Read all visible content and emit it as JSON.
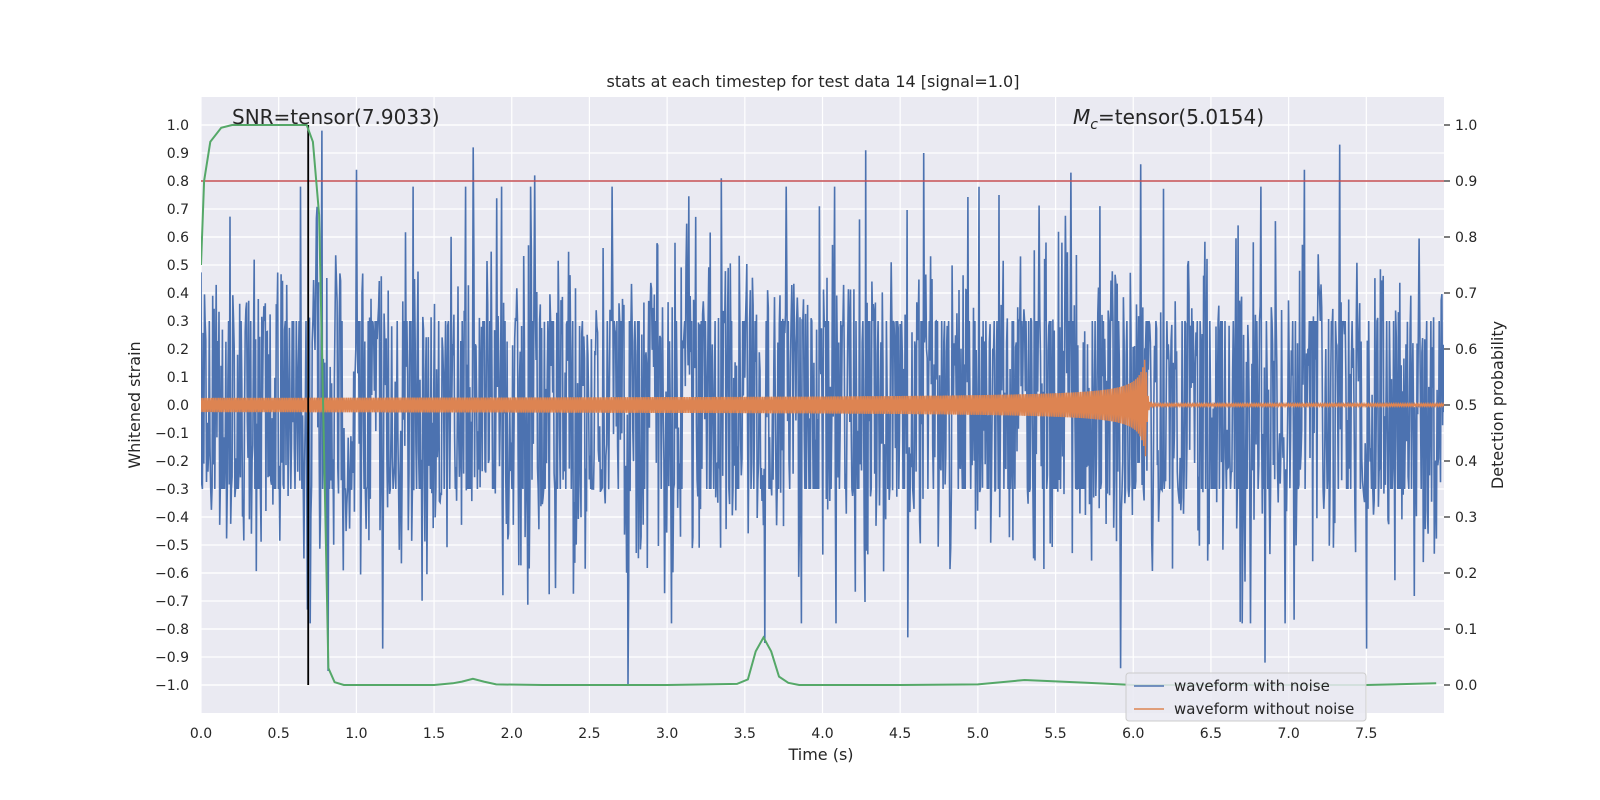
{
  "chart_data": {
    "type": "line",
    "title": "stats at each timestep for test data 14 [signal=1.0]",
    "xlabel": "Time (s)",
    "ylabel": "Whitened strain",
    "y2label": "Detection probability",
    "xlim": [
      0.0,
      8.0
    ],
    "ylim": [
      -1.1,
      1.1
    ],
    "y2lim": [
      -0.05,
      1.05
    ],
    "xticks": [
      0.0,
      0.5,
      1.0,
      1.5,
      2.0,
      2.5,
      3.0,
      3.5,
      4.0,
      4.5,
      5.0,
      5.5,
      6.0,
      6.5,
      7.0,
      7.5
    ],
    "xtick_labels": [
      "0.0",
      "0.5",
      "1.0",
      "1.5",
      "2.0",
      "2.5",
      "3.0",
      "3.5",
      "4.0",
      "4.5",
      "5.0",
      "5.5",
      "6.0",
      "6.5",
      "7.0",
      "7.5"
    ],
    "yticks": [
      -1.0,
      -0.9,
      -0.8,
      -0.7,
      -0.6,
      -0.5,
      -0.4,
      -0.3,
      -0.2,
      -0.1,
      0.0,
      0.1,
      0.2,
      0.3,
      0.4,
      0.5,
      0.6,
      0.7,
      0.8,
      0.9,
      1.0
    ],
    "ytick_labels": [
      "−1.0",
      "−0.9",
      "−0.8",
      "−0.7",
      "−0.6",
      "−0.5",
      "−0.4",
      "−0.3",
      "−0.2",
      "−0.1",
      "0.0",
      "0.1",
      "0.2",
      "0.3",
      "0.4",
      "0.5",
      "0.6",
      "0.7",
      "0.8",
      "0.9",
      "1.0"
    ],
    "y2ticks": [
      0.0,
      0.1,
      0.2,
      0.3,
      0.4,
      0.5,
      0.6,
      0.7,
      0.8,
      0.9,
      1.0
    ],
    "y2tick_labels": [
      "0.0",
      "0.1",
      "0.2",
      "0.3",
      "0.4",
      "0.5",
      "0.6",
      "0.7",
      "0.8",
      "0.9",
      "1.0"
    ],
    "grid": true,
    "legend_position": "bottom-right",
    "annotations": {
      "snr_text": "SNR=tensor(7.9033)",
      "mc_symbol": "M",
      "mc_subscript": "c",
      "mc_value": "=tensor(5.0154)"
    },
    "series": [
      {
        "name": "waveform with noise",
        "color": "#4c72b0",
        "axis": "left",
        "description_values": {
          "typical_envelope": 0.45,
          "peak_max": 0.98,
          "peak_min": -1.0
        },
        "spikes": [
          {
            "x": 0.78,
            "y": 0.98
          },
          {
            "x": 1.0,
            "y": 0.84
          },
          {
            "x": 1.75,
            "y": 0.92
          },
          {
            "x": 2.15,
            "y": 0.82
          },
          {
            "x": 3.35,
            "y": 0.81
          },
          {
            "x": 4.28,
            "y": 0.91
          },
          {
            "x": 4.65,
            "y": 0.9
          },
          {
            "x": 5.6,
            "y": 0.83
          },
          {
            "x": 6.05,
            "y": 0.86
          },
          {
            "x": 6.82,
            "y": 0.78
          },
          {
            "x": 7.33,
            "y": 0.93
          },
          {
            "x": 7.1,
            "y": 0.84
          },
          {
            "x": 2.75,
            "y": -1.0
          },
          {
            "x": 3.63,
            "y": -0.85
          },
          {
            "x": 5.92,
            "y": -0.94
          },
          {
            "x": 6.85,
            "y": -0.92
          },
          {
            "x": 7.5,
            "y": -0.87
          },
          {
            "x": 0.82,
            "y": -0.95
          },
          {
            "x": 1.17,
            "y": -0.87
          },
          {
            "x": 4.55,
            "y": -0.83
          }
        ]
      },
      {
        "name": "waveform without noise",
        "color": "#dd8452",
        "axis": "left",
        "description_values": {
          "start_amplitude": 0.02,
          "merger_time": 6.08,
          "merger_amplitude": 0.19,
          "ringdown_end": 6.12
        }
      },
      {
        "name": "detection probability",
        "color": "#55a868",
        "axis": "right",
        "x": [
          0.0,
          0.02,
          0.06,
          0.13,
          0.2,
          0.3,
          0.5,
          0.68,
          0.72,
          0.76,
          0.79,
          0.82,
          0.86,
          0.92,
          1.2,
          1.5,
          1.62,
          1.68,
          1.75,
          1.82,
          1.9,
          2.2,
          3.0,
          3.45,
          3.52,
          3.57,
          3.62,
          3.67,
          3.72,
          3.78,
          3.85,
          4.5,
          5.0,
          5.3,
          5.7,
          6.0,
          6.5,
          7.0,
          7.5,
          7.95
        ],
        "values": [
          0.75,
          0.9,
          0.97,
          0.995,
          1.0,
          1.0,
          1.0,
          1.0,
          0.97,
          0.84,
          0.45,
          0.03,
          0.005,
          0.0,
          0.0,
          0.0,
          0.003,
          0.006,
          0.011,
          0.006,
          0.001,
          0.0,
          0.0,
          0.002,
          0.01,
          0.06,
          0.085,
          0.06,
          0.015,
          0.004,
          0.0,
          0.0,
          0.001,
          0.009,
          0.004,
          0.0,
          0.0,
          0.0,
          0.0,
          0.003
        ]
      }
    ],
    "reference_lines": [
      {
        "name": "threshold",
        "axis": "right",
        "orientation": "horizontal",
        "value": 0.9,
        "color": "#c44e52"
      },
      {
        "name": "detection-time",
        "axis": "left",
        "orientation": "vertical",
        "value": 0.69,
        "y_range": [
          -1.0,
          1.0
        ],
        "color": "#000000"
      }
    ]
  }
}
